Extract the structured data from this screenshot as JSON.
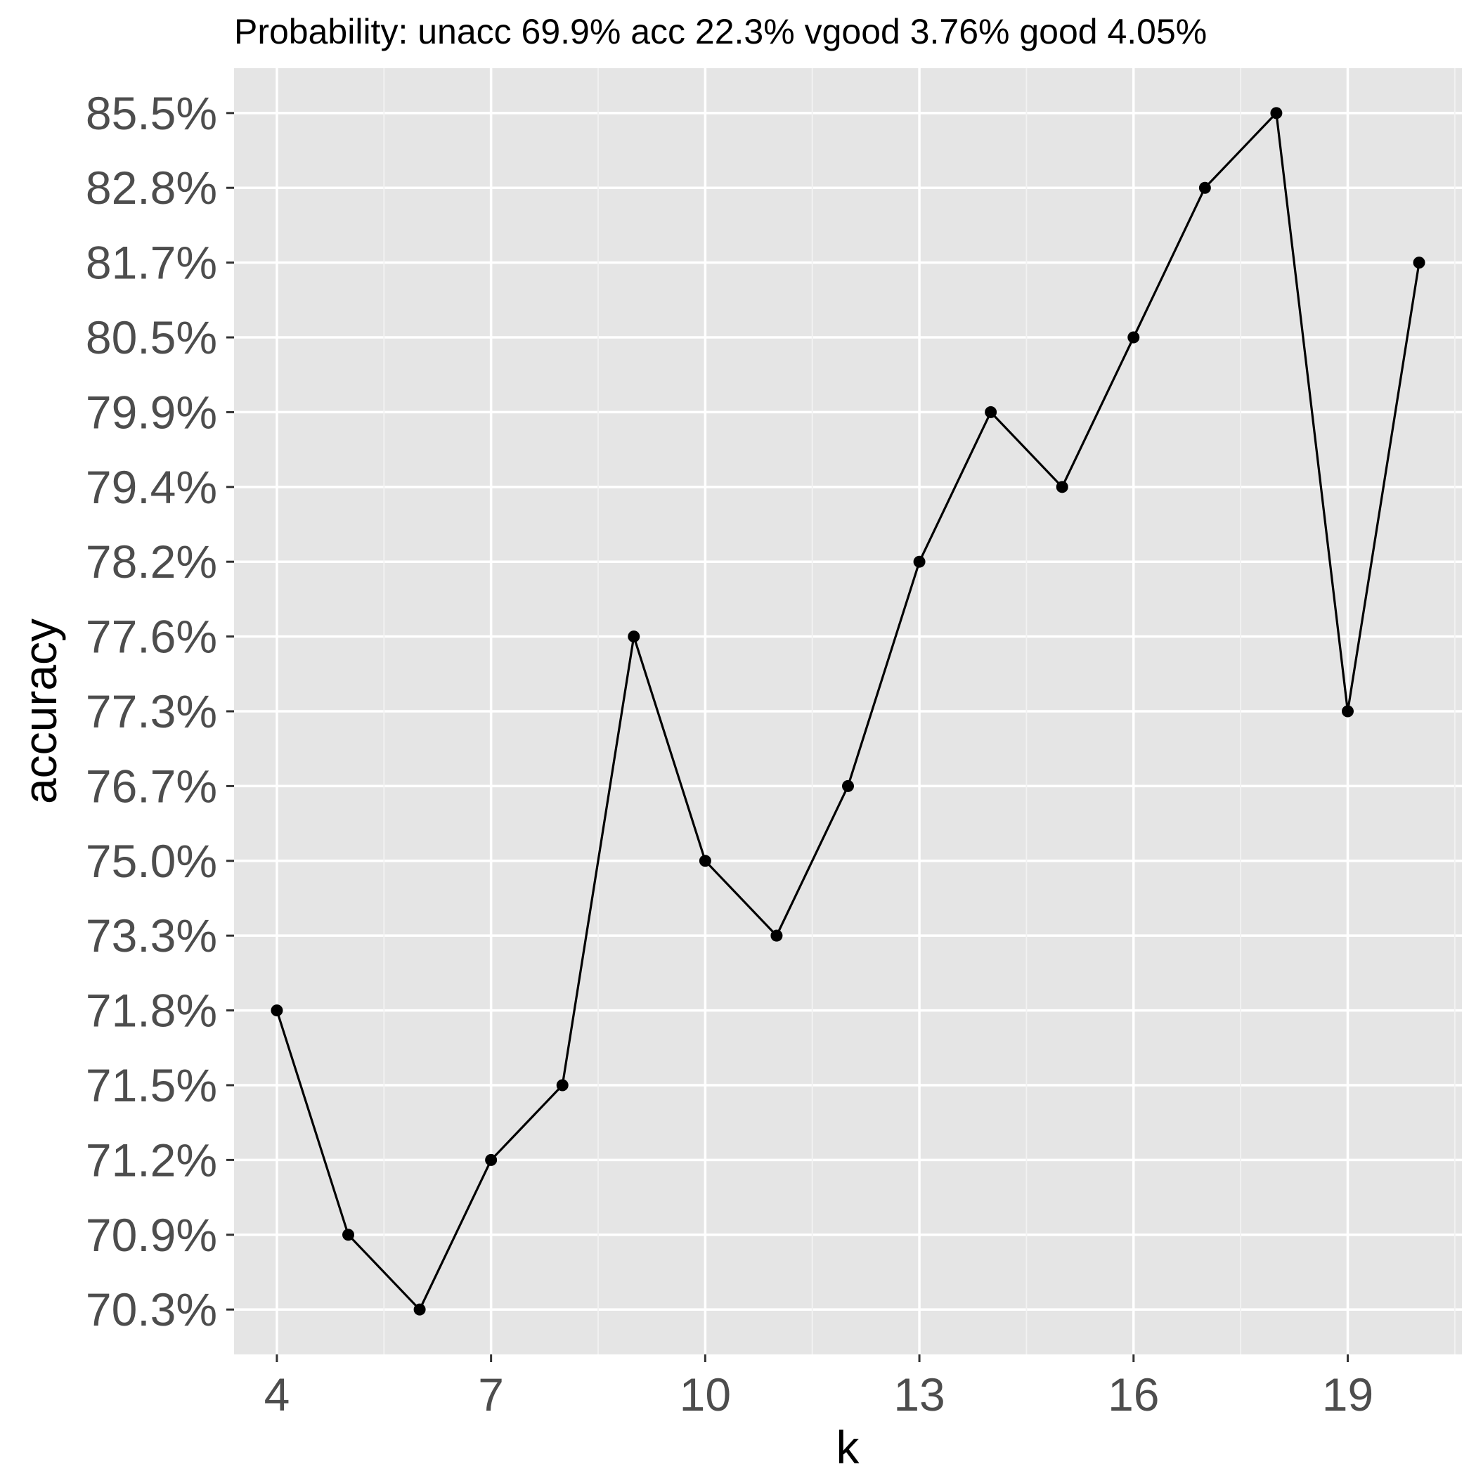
{
  "chart_data": {
    "type": "line",
    "title": "Probability: unacc 69.9% acc 22.3% vgood 3.76% good 4.05%",
    "xlabel": "k",
    "ylabel": "accuracy",
    "x": [
      4,
      5,
      6,
      7,
      8,
      9,
      10,
      11,
      12,
      13,
      14,
      15,
      16,
      17,
      18,
      19,
      20
    ],
    "values": [
      "71.8%",
      "70.9%",
      "70.3%",
      "71.2%",
      "71.5%",
      "77.6%",
      "75.0%",
      "73.3%",
      "76.7%",
      "78.2%",
      "79.9%",
      "79.4%",
      "80.5%",
      "82.8%",
      "85.5%",
      "77.3%",
      "81.7%"
    ],
    "y_scale": "discrete (ordered category levels)",
    "y_ticks": [
      "70.3%",
      "70.9%",
      "71.2%",
      "71.5%",
      "71.8%",
      "73.3%",
      "75.0%",
      "76.7%",
      "77.3%",
      "77.6%",
      "78.2%",
      "79.4%",
      "79.9%",
      "80.5%",
      "81.7%",
      "82.8%",
      "85.5%"
    ],
    "x_ticks": [
      "4",
      "7",
      "10",
      "13",
      "16",
      "19"
    ],
    "xlim": [
      3.4,
      20.6
    ],
    "grid": true,
    "legend": "none",
    "colors": {
      "panel_background": "#e5e5e5",
      "grid": "#ffffff",
      "line": "#000000",
      "tick_text": "#4d4d4d"
    }
  }
}
